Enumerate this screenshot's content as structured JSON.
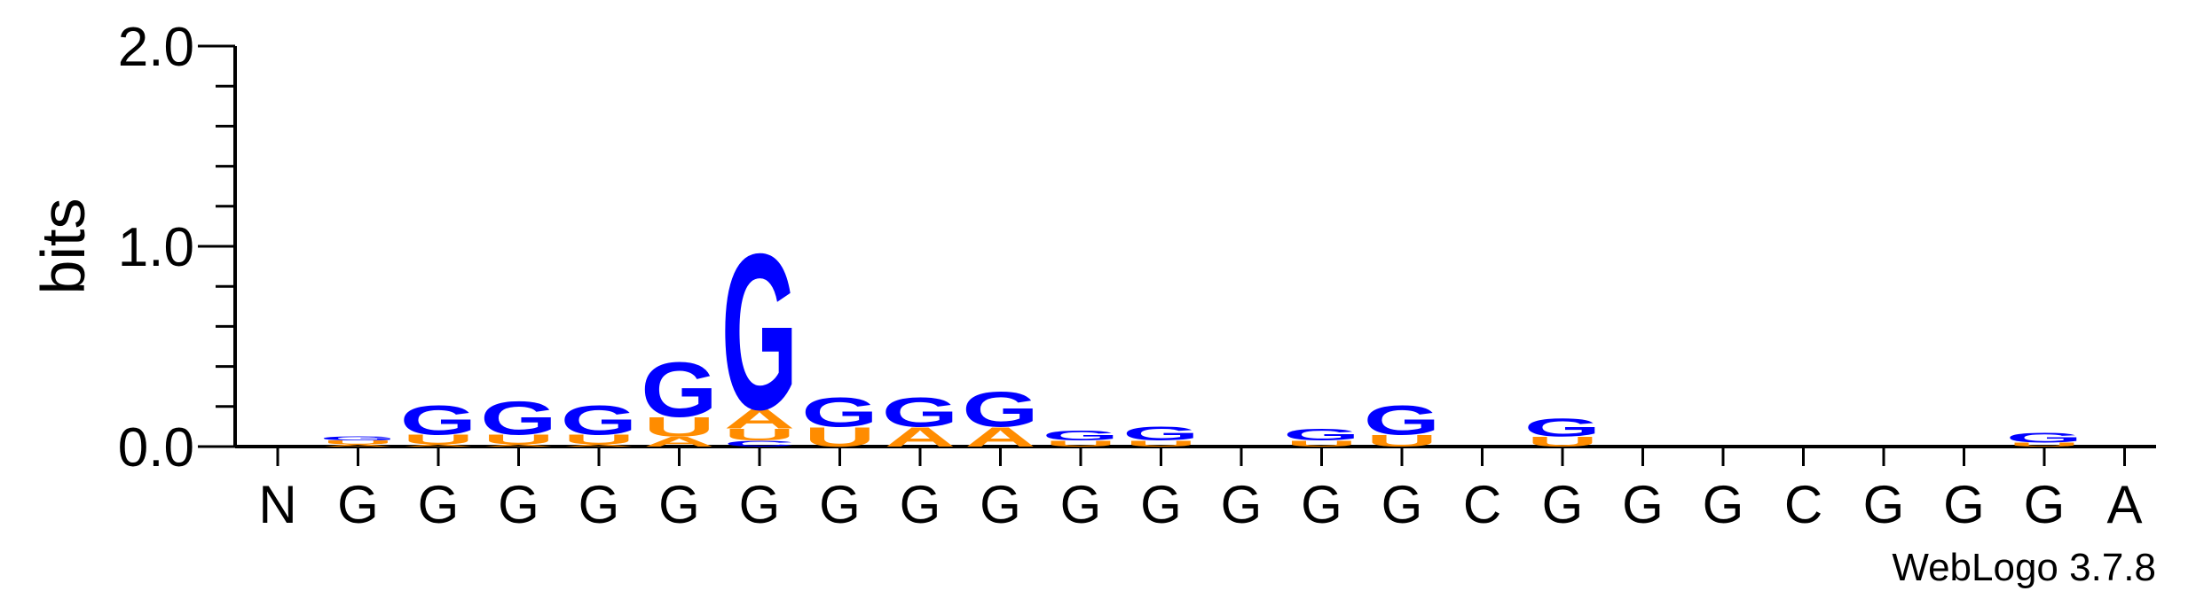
{
  "chart_data": {
    "type": "sequence-logo",
    "ylabel": "bits",
    "ylim": [
      0,
      2.0
    ],
    "yticks": [
      "0.0",
      "1.0",
      "2.0"
    ],
    "x_labels": [
      "N",
      "G",
      "G",
      "G",
      "G",
      "G",
      "G",
      "G",
      "G",
      "G",
      "G",
      "G",
      "G",
      "G",
      "G",
      "C",
      "G",
      "G",
      "G",
      "C",
      "G",
      "G",
      "G",
      "A"
    ],
    "colors": {
      "G": "#0000ff",
      "U": "#ff8c00",
      "A": "#ff8c00",
      "C": "#0000ff"
    },
    "columns": [
      {
        "stack": []
      },
      {
        "stack": [
          {
            "letter": "A",
            "bits": 0.01
          },
          {
            "letter": "U",
            "bits": 0.02
          },
          {
            "letter": "G",
            "bits": 0.02
          }
        ]
      },
      {
        "stack": [
          {
            "letter": "A",
            "bits": 0.01
          },
          {
            "letter": "U",
            "bits": 0.05
          },
          {
            "letter": "G",
            "bits": 0.15
          }
        ]
      },
      {
        "stack": [
          {
            "letter": "A",
            "bits": 0.01
          },
          {
            "letter": "U",
            "bits": 0.05
          },
          {
            "letter": "G",
            "bits": 0.17
          }
        ]
      },
      {
        "stack": [
          {
            "letter": "A",
            "bits": 0.01
          },
          {
            "letter": "U",
            "bits": 0.05
          },
          {
            "letter": "G",
            "bits": 0.15
          }
        ]
      },
      {
        "stack": [
          {
            "letter": "A",
            "bits": 0.05
          },
          {
            "letter": "U",
            "bits": 0.1
          },
          {
            "letter": "G",
            "bits": 0.28
          }
        ]
      },
      {
        "stack": [
          {
            "letter": "C",
            "bits": 0.03
          },
          {
            "letter": "U",
            "bits": 0.06
          },
          {
            "letter": "A",
            "bits": 0.1
          },
          {
            "letter": "G",
            "bits": 0.8
          }
        ]
      },
      {
        "stack": [
          {
            "letter": "U",
            "bits": 0.1
          },
          {
            "letter": "G",
            "bits": 0.15
          }
        ]
      },
      {
        "stack": [
          {
            "letter": "A",
            "bits": 0.1
          },
          {
            "letter": "G",
            "bits": 0.15
          }
        ]
      },
      {
        "stack": [
          {
            "letter": "A",
            "bits": 0.1
          },
          {
            "letter": "G",
            "bits": 0.18
          }
        ]
      },
      {
        "stack": [
          {
            "letter": "U",
            "bits": 0.03
          },
          {
            "letter": "G",
            "bits": 0.05
          }
        ]
      },
      {
        "stack": [
          {
            "letter": "U",
            "bits": 0.03
          },
          {
            "letter": "G",
            "bits": 0.07
          }
        ]
      },
      {
        "stack": []
      },
      {
        "stack": [
          {
            "letter": "U",
            "bits": 0.03
          },
          {
            "letter": "G",
            "bits": 0.06
          }
        ]
      },
      {
        "stack": [
          {
            "letter": "U",
            "bits": 0.06
          },
          {
            "letter": "G",
            "bits": 0.15
          }
        ]
      },
      {
        "stack": []
      },
      {
        "stack": [
          {
            "letter": "U",
            "bits": 0.05
          },
          {
            "letter": "G",
            "bits": 0.09
          }
        ]
      },
      {
        "stack": []
      },
      {
        "stack": []
      },
      {
        "stack": []
      },
      {
        "stack": []
      },
      {
        "stack": []
      },
      {
        "stack": [
          {
            "letter": "U",
            "bits": 0.02
          },
          {
            "letter": "G",
            "bits": 0.05
          }
        ]
      },
      {
        "stack": []
      }
    ]
  },
  "footer": {
    "version": "WebLogo 3.7.8"
  }
}
